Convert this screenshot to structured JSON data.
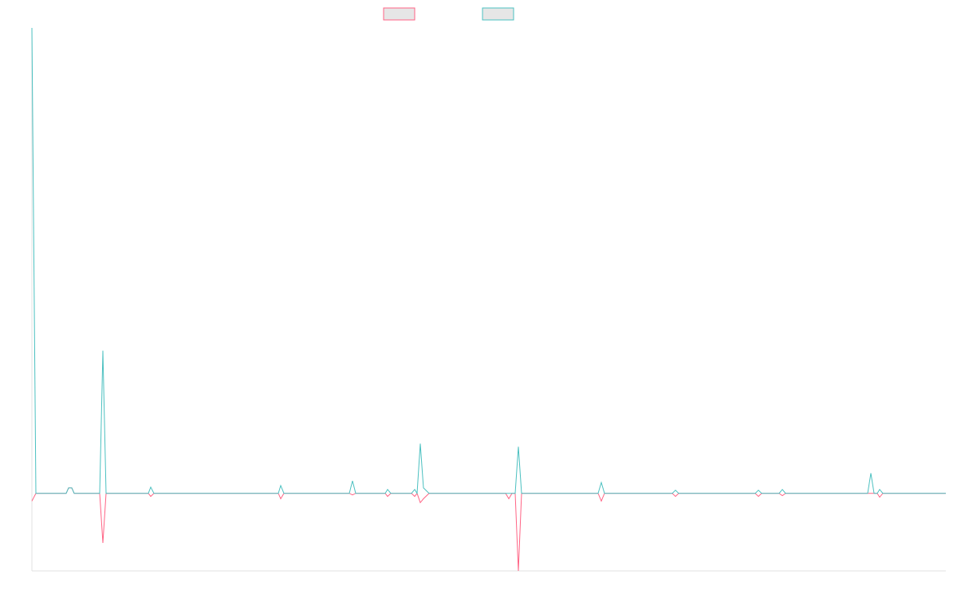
{
  "chart_data": {
    "type": "line",
    "x": [
      0,
      5,
      43,
      46,
      50,
      53,
      85,
      89,
      93,
      146,
      149,
      153,
      309,
      312,
      316,
      398,
      402,
      406,
      443,
      446,
      450,
      476,
      480,
      483,
      487,
      491,
      498,
      594,
      598,
      602,
      606,
      610,
      614,
      710,
      714,
      718,
      803,
      807,
      811,
      907,
      911,
      915,
      937,
      941,
      945,
      1048,
      1052,
      1056,
      1060,
      1063,
      1067,
      1146
    ],
    "series": [
      {
        "color": "#ff6384",
        "values": [
          -0.1,
          0,
          0,
          0.07,
          0.07,
          0,
          0,
          -0.64,
          0,
          0,
          -0.04,
          0,
          0,
          -0.07,
          0,
          0,
          -0.02,
          0,
          0,
          -0.04,
          0,
          0,
          -0.04,
          0,
          -0.12,
          -0.07,
          0,
          0,
          -0.07,
          0,
          0,
          -1.0,
          0,
          0,
          -0.1,
          0,
          0,
          -0.04,
          0,
          0,
          -0.04,
          0,
          0,
          -0.03,
          0,
          0,
          0,
          0,
          0,
          -0.05,
          0,
          0
        ]
      },
      {
        "color": "#4bc0c0",
        "values": [
          6.0,
          0,
          0,
          0.07,
          0.07,
          0,
          0,
          1.84,
          0,
          0,
          0.08,
          0,
          0,
          0.1,
          0,
          0,
          0.16,
          0,
          0,
          0.05,
          0,
          0,
          0.05,
          0,
          0.64,
          0.07,
          0,
          0,
          0,
          0,
          0,
          0.6,
          0,
          0,
          0.14,
          0,
          0,
          0.04,
          0,
          0,
          0.04,
          0,
          0,
          0.05,
          0,
          0,
          0.26,
          0,
          0,
          0.05,
          0,
          0
        ]
      }
    ],
    "xlim": [
      0,
      1146
    ],
    "ylim": [
      -1,
      6
    ]
  }
}
